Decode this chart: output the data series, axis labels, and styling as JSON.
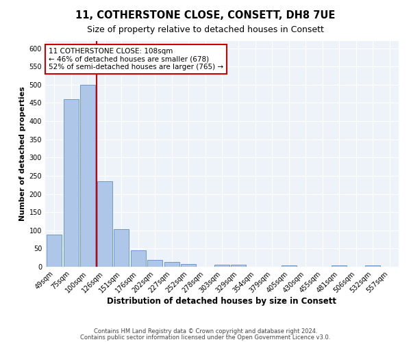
{
  "title": "11, COTHERSTONE CLOSE, CONSETT, DH8 7UE",
  "subtitle": "Size of property relative to detached houses in Consett",
  "xlabel": "Distribution of detached houses by size in Consett",
  "ylabel": "Number of detached properties",
  "categories": [
    "49sqm",
    "75sqm",
    "100sqm",
    "126sqm",
    "151sqm",
    "176sqm",
    "202sqm",
    "227sqm",
    "252sqm",
    "278sqm",
    "303sqm",
    "329sqm",
    "354sqm",
    "379sqm",
    "405sqm",
    "430sqm",
    "455sqm",
    "481sqm",
    "506sqm",
    "532sqm",
    "557sqm"
  ],
  "values": [
    88,
    460,
    500,
    235,
    103,
    46,
    19,
    13,
    8,
    0,
    6,
    6,
    0,
    0,
    4,
    0,
    0,
    4,
    0,
    4,
    0
  ],
  "bar_color": "#aec6e8",
  "bar_edge_color": "#5b8ec9",
  "vline_x": 2.5,
  "vline_color": "#cc0000",
  "annotation_text": "11 COTHERSTONE CLOSE: 108sqm\n← 46% of detached houses are smaller (678)\n52% of semi-detached houses are larger (765) →",
  "annotation_box_color": "#ffffff",
  "annotation_box_edge_color": "#cc0000",
  "ylim": [
    0,
    620
  ],
  "yticks": [
    0,
    50,
    100,
    150,
    200,
    250,
    300,
    350,
    400,
    450,
    500,
    550,
    600
  ],
  "bg_color": "#eef2f9",
  "footnote_line1": "Contains HM Land Registry data © Crown copyright and database right 2024.",
  "footnote_line2": "Contains public sector information licensed under the Open Government Licence v3.0.",
  "title_fontsize": 10.5,
  "subtitle_fontsize": 9,
  "xlabel_fontsize": 8.5,
  "ylabel_fontsize": 8,
  "tick_fontsize": 7,
  "annotation_fontsize": 7.5,
  "footnote_fontsize": 6
}
